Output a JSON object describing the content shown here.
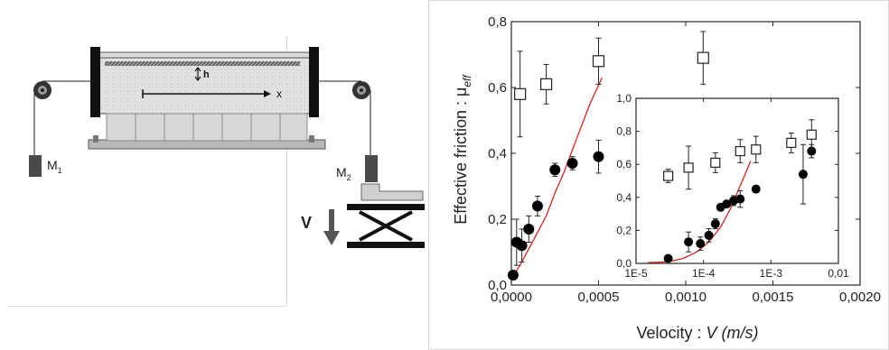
{
  "diagram": {
    "label_h": "h",
    "label_x": "x",
    "label_m1": "M",
    "label_m1_sub": "1",
    "label_m2": "M",
    "label_m2_sub": "2",
    "label_v": "V"
  },
  "chart_data": {
    "type": "scatter",
    "xlabel_prefix": "Velocity : ",
    "xlabel_italic": "V (m/s)",
    "ylabel_prefix": "Effective friction : μ",
    "ylabel_sub": "eff",
    "xlim": [
      0,
      0.002
    ],
    "ylim": [
      0,
      0.8
    ],
    "x_ticks": [
      "0,0000",
      "0,0005",
      "0,0010",
      "0,0015",
      "0,0020"
    ],
    "y_ticks": [
      "0,0",
      "0,2",
      "0,4",
      "0,6",
      "0,8"
    ],
    "series": [
      {
        "marker": "filled-circle",
        "x": [
          1e-05,
          3e-05,
          6e-05,
          0.0001,
          0.00015,
          0.00025,
          0.00035,
          0.0005
        ],
        "y": [
          0.03,
          0.13,
          0.12,
          0.17,
          0.24,
          0.35,
          0.37,
          0.39
        ],
        "err": [
          0.01,
          0.07,
          0.05,
          0.04,
          0.03,
          0.02,
          0.02,
          0.05
        ]
      },
      {
        "marker": "open-square",
        "x": [
          5e-05,
          0.0002,
          0.0005,
          0.0011
        ],
        "y": [
          0.58,
          0.61,
          0.68,
          0.69
        ],
        "err": [
          0.13,
          0.06,
          0.07,
          0.08
        ]
      }
    ],
    "fit_line": {
      "color": "#d9241c",
      "x": [
        0.0,
        5e-05,
        0.0001,
        0.00015,
        0.0002,
        0.00025,
        0.0003,
        0.00035,
        0.0004,
        0.00045,
        0.00052
      ],
      "y": [
        0.02,
        0.06,
        0.11,
        0.16,
        0.21,
        0.28,
        0.34,
        0.41,
        0.48,
        0.55,
        0.63
      ]
    },
    "inset": {
      "xscale": "log",
      "xlim": [
        1e-05,
        0.01
      ],
      "ylim": [
        0,
        1.0
      ],
      "x_ticks": [
        "1E-5",
        "1E-4",
        "1E-3",
        "0,01"
      ],
      "y_ticks": [
        "0,0",
        "0,2",
        "0,4",
        "0,6",
        "0,8",
        "1,0"
      ],
      "series": [
        {
          "marker": "filled-circle",
          "x": [
            3e-05,
            6e-05,
            9e-05,
            0.00012,
            0.00015,
            0.00018,
            0.00022,
            0.00028,
            0.00035,
            0.0006,
            0.003,
            0.004
          ],
          "y": [
            0.03,
            0.13,
            0.12,
            0.17,
            0.24,
            0.34,
            0.36,
            0.38,
            0.39,
            0.45,
            0.54,
            0.68
          ],
          "err": [
            0.01,
            0.06,
            0.04,
            0.04,
            0.03,
            0.02,
            0.02,
            0.03,
            0.05,
            0.02,
            0.18,
            0.04
          ]
        },
        {
          "marker": "open-square",
          "x": [
            3e-05,
            6e-05,
            0.00015,
            0.00035,
            0.0006,
            0.002,
            0.004
          ],
          "y": [
            0.53,
            0.58,
            0.61,
            0.68,
            0.69,
            0.73,
            0.78
          ],
          "err": [
            0.04,
            0.13,
            0.06,
            0.07,
            0.08,
            0.06,
            0.09
          ]
        }
      ],
      "fit_line": {
        "color": "#d9241c",
        "x": [
          1.5e-05,
          3e-05,
          5e-05,
          8e-05,
          0.00012,
          0.00018,
          0.00025,
          0.00035,
          0.0005
        ],
        "y": [
          0.005,
          0.01,
          0.03,
          0.07,
          0.13,
          0.22,
          0.33,
          0.47,
          0.62
        ]
      }
    }
  }
}
